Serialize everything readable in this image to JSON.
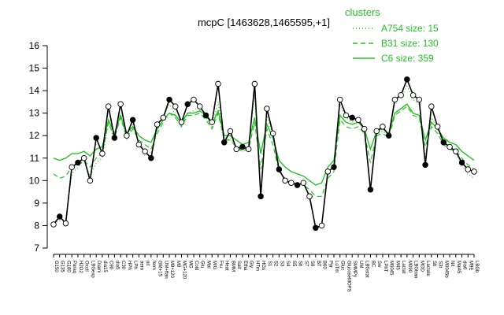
{
  "chart_data": {
    "type": "line",
    "title": "mcpC [1463628,1465595,+1]",
    "ylim": [
      7,
      16
    ],
    "yticks": [
      7,
      8,
      9,
      10,
      11,
      12,
      13,
      14,
      15,
      16
    ],
    "xlabels": [
      "G150",
      "G135",
      "G180",
      "Paraq",
      "H2O2",
      "Oxctl",
      "LBGexp",
      "Diami",
      "dia15",
      "C90",
      "dia5",
      "C30",
      "HPh",
      "LPh",
      "aero",
      "nit",
      "ferm",
      "GM+15",
      "UM+ffan",
      "M9+120",
      "M9",
      "MG+120",
      "MG",
      "Cold",
      "Glu",
      "Mal",
      "M/G",
      "Fru",
      "Heat",
      "BMM",
      "Salt",
      "Etha",
      "Gly",
      "HTm",
      "HGs",
      "S1",
      "S2",
      "S3",
      "S4",
      "S5",
      "S6",
      "S7",
      "S8",
      "BT",
      "B60",
      "Pyr",
      "LoTm",
      "Gluc",
      "GlucoseMOPS",
      "SMMPy",
      "UM",
      "LBGstat",
      "BC",
      "Sw",
      "LPhT",
      "M0045",
      "M45",
      "Lactat",
      "M090",
      "LBGtran",
      "MOD",
      "Lactate",
      "Sb",
      "S3t",
      "M0045b",
      "Nit",
      "Mal45",
      "dia0",
      "M9E",
      "LBGb"
    ],
    "xlabels_sample": [
      "G150",
      "G135",
      "G180",
      "Paraq",
      "H2O2",
      "Oxctl",
      "LBGexp",
      "Diami",
      "dia15",
      "C90",
      "dia5",
      "C30",
      "HPh",
      "LPh",
      "aero",
      "nit",
      "ferm",
      "GM+15",
      "M/G",
      "Mal",
      "Fru",
      "Glu",
      "Heat",
      "BMM",
      "Salt",
      "Etha",
      "Gly",
      "HTm",
      "HGs",
      "S1",
      "S2",
      "S3",
      "S4",
      "S5",
      "S6",
      "S7",
      "S8",
      "BT",
      "B60",
      "Pyr",
      "LoTm",
      "Gluc",
      "BC",
      "Sw",
      "LPhT",
      "Lactat",
      "M0045",
      "M090",
      "Sb",
      "dia0",
      "M9E"
    ],
    "series": [
      {
        "name": "A754 size: 15",
        "style": "dotted",
        "values": [
          8.1,
          8.2,
          8.3,
          10.3,
          10.6,
          10.9,
          10.2,
          10.8,
          11.0,
          12.6,
          11.8,
          13.0,
          11.8,
          12.5,
          11.7,
          11.4,
          11.2,
          12.2,
          12.8,
          13.4,
          12.9,
          12.4,
          13.0,
          13.1,
          13.3,
          12.8,
          12.4,
          13.5,
          11.6,
          11.9,
          11.4,
          11.3,
          11.5,
          13.8,
          9.4,
          12.9,
          12.0,
          10.4,
          10.1,
          9.9,
          9.9,
          9.8,
          9.4,
          7.9,
          8.0,
          10.3,
          10.7,
          13.4,
          12.8,
          12.6,
          12.7,
          12.2,
          9.6,
          12.0,
          12.2,
          12.0,
          13.5,
          13.7,
          14.2,
          13.6,
          13.4,
          11.0,
          12.8,
          12.3,
          11.6,
          11.5,
          11.2,
          10.7,
          10.3,
          10.1
        ]
      },
      {
        "name": "B31 size: 130",
        "style": "dashed",
        "values": [
          10.3,
          10.1,
          10.2,
          10.6,
          10.7,
          10.9,
          10.6,
          11.0,
          11.2,
          12.6,
          11.9,
          12.8,
          11.9,
          12.3,
          11.8,
          11.6,
          11.4,
          12.1,
          12.6,
          13.0,
          12.8,
          12.4,
          12.9,
          12.9,
          13.0,
          12.7,
          12.3,
          13.0,
          11.8,
          11.8,
          11.5,
          11.3,
          11.4,
          12.6,
          10.5,
          12.3,
          11.6,
          10.4,
          10.1,
          9.9,
          9.9,
          9.8,
          9.6,
          9.3,
          9.3,
          10.1,
          10.4,
          12.7,
          12.4,
          12.3,
          12.4,
          12.1,
          10.8,
          12.0,
          12.1,
          11.9,
          12.9,
          13.1,
          13.3,
          12.9,
          12.8,
          11.5,
          12.4,
          12.1,
          11.6,
          11.4,
          11.3,
          11.0,
          10.7,
          10.5
        ]
      },
      {
        "name": "C6 size: 359",
        "style": "solid",
        "values": [
          11.0,
          10.9,
          11.0,
          11.2,
          11.2,
          11.3,
          11.1,
          11.4,
          11.5,
          12.7,
          12.1,
          12.9,
          12.1,
          12.4,
          12.0,
          11.8,
          11.7,
          12.3,
          12.7,
          13.0,
          12.9,
          12.6,
          13.0,
          13.0,
          13.1,
          12.9,
          12.5,
          13.1,
          12.0,
          12.0,
          11.8,
          11.6,
          11.7,
          12.8,
          11.2,
          12.5,
          11.9,
          10.9,
          10.6,
          10.4,
          10.3,
          10.2,
          10.0,
          9.8,
          9.9,
          10.6,
          10.9,
          12.9,
          12.6,
          12.5,
          12.6,
          12.3,
          11.4,
          12.2,
          12.3,
          12.1,
          13.0,
          13.2,
          13.4,
          13.0,
          12.9,
          11.8,
          12.6,
          12.3,
          11.9,
          11.7,
          11.6,
          11.3,
          11.1,
          10.9
        ]
      }
    ],
    "points": [
      8.05,
      8.4,
      8.1,
      10.6,
      10.8,
      11.0,
      10.0,
      11.9,
      11.2,
      13.3,
      11.9,
      13.4,
      12.0,
      12.7,
      11.6,
      11.3,
      11.0,
      12.5,
      12.8,
      13.6,
      13.3,
      12.6,
      13.4,
      13.6,
      13.3,
      12.9,
      12.6,
      14.3,
      11.7,
      12.2,
      11.4,
      11.5,
      11.4,
      14.3,
      9.3,
      13.2,
      12.1,
      10.5,
      10.0,
      9.9,
      9.8,
      9.9,
      9.3,
      7.9,
      8.0,
      10.4,
      10.6,
      13.6,
      12.9,
      12.8,
      12.7,
      12.3,
      9.6,
      12.2,
      12.4,
      12.0,
      13.6,
      13.8,
      14.5,
      13.8,
      13.6,
      10.7,
      13.3,
      12.4,
      11.7,
      11.5,
      11.3,
      10.8,
      10.5,
      10.4
    ],
    "legend": {
      "title": "clusters",
      "position": "top-right"
    }
  },
  "colors": {
    "line": "#22c422",
    "point_fill": "#ffffff",
    "point_stroke": "#000000",
    "dark_point": "#000000"
  }
}
